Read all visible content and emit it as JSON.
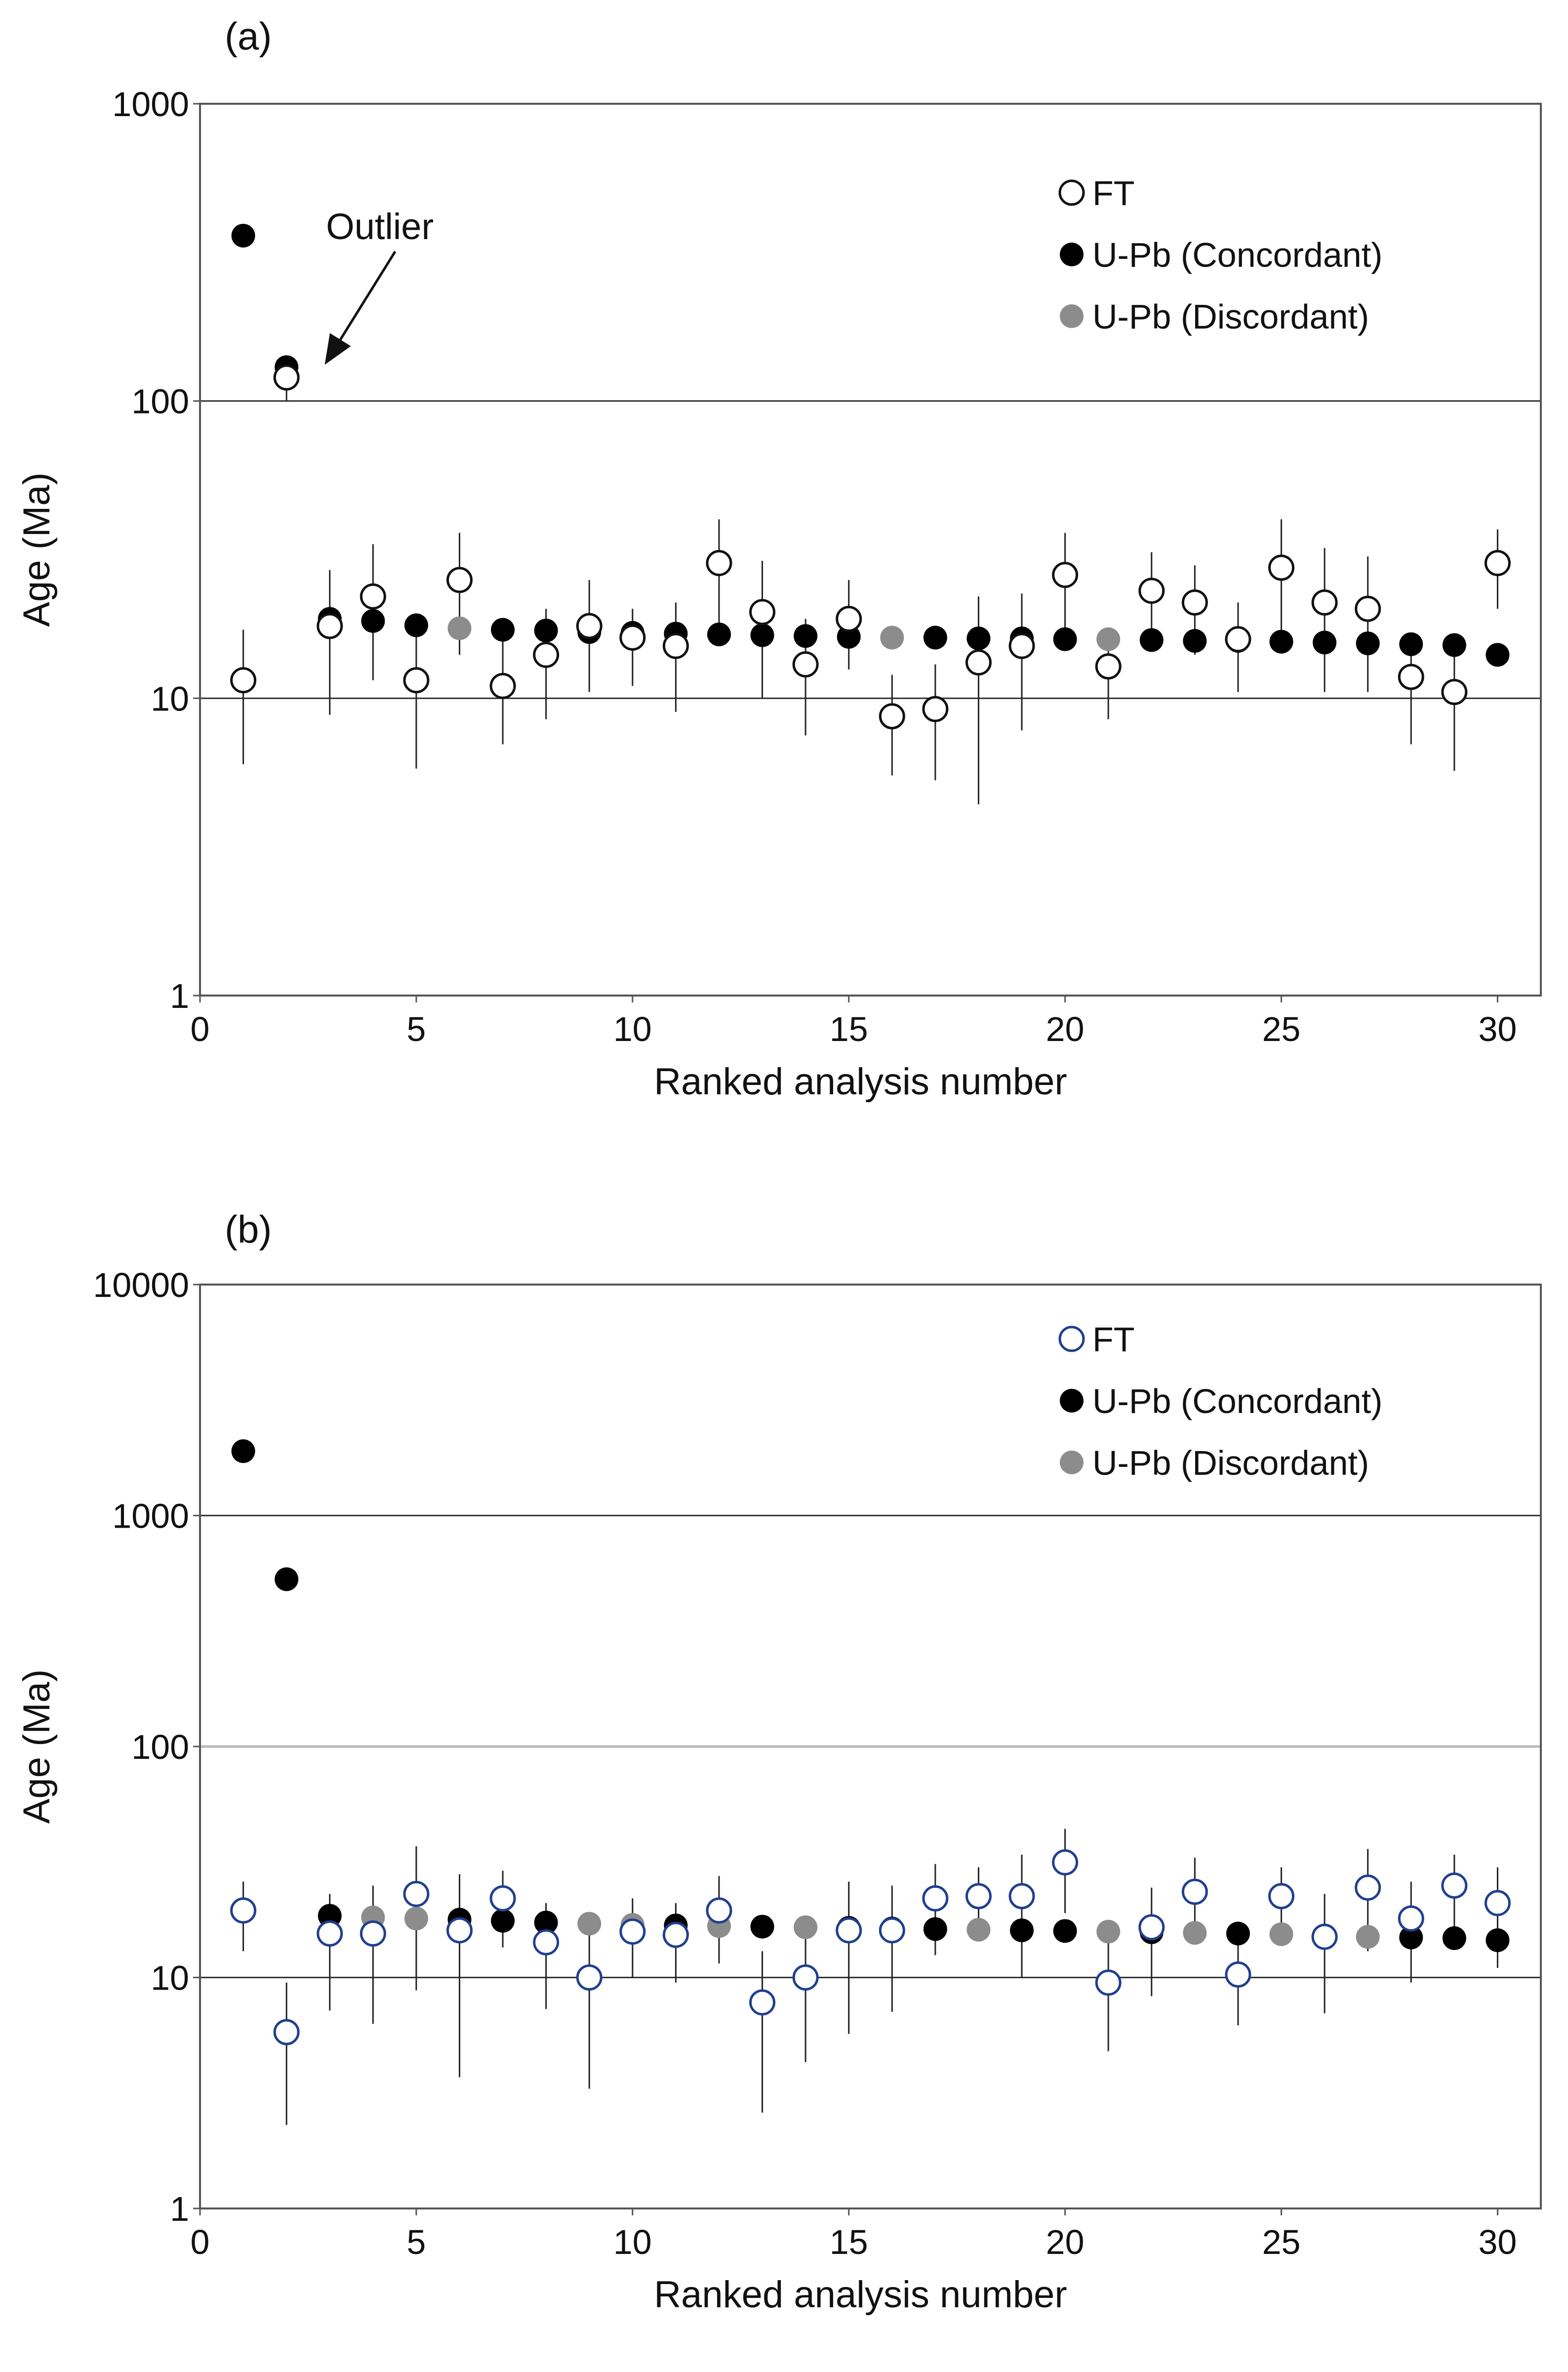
{
  "colors": {
    "ft_fill": "#ffffff",
    "ft_stroke_a": "#111111",
    "ft_stroke_b": "#1f3f8f",
    "concordant": "#000000",
    "discordant": "#8c8c8c",
    "grid": "#333333",
    "grid_b_100": "#b8b8b8",
    "errorbar": "#222222"
  },
  "chart_data": [
    {
      "id": "a",
      "panel_label": "(a)",
      "type": "scatter",
      "y_scale": "log",
      "xlabel": "Ranked analysis number",
      "ylabel": "Age (Ma)",
      "xlim": [
        0,
        31
      ],
      "ylim": [
        1,
        1000
      ],
      "x_ticks": [
        0,
        5,
        10,
        15,
        20,
        25,
        30
      ],
      "x_tick_labels": [
        "0",
        "5",
        "10",
        "15",
        "20",
        "25",
        "30"
      ],
      "y_ticks": [
        1,
        10,
        100,
        1000
      ],
      "y_tick_labels": [
        "1",
        "10",
        "100",
        "1000"
      ],
      "gridlines_y": [
        10,
        100
      ],
      "legend": {
        "position": "top-right",
        "entries": [
          {
            "key": "ft",
            "label": "FT"
          },
          {
            "key": "concordant",
            "label": "U-Pb (Concordant)"
          },
          {
            "key": "discordant",
            "label": "U-Pb (Discordant)"
          }
        ]
      },
      "annotation": {
        "text": "Outlier",
        "points_to": {
          "x": 2,
          "y": 120
        }
      },
      "series": [
        {
          "key": "upb",
          "name": "U-Pb",
          "points": [
            {
              "x": 1,
              "y": 360,
              "status": "concordant"
            },
            {
              "x": 2,
              "y": 130,
              "status": "concordant"
            },
            {
              "x": 3,
              "y": 18.5,
              "status": "concordant"
            },
            {
              "x": 4,
              "y": 18.2,
              "status": "concordant"
            },
            {
              "x": 5,
              "y": 17.6,
              "status": "concordant"
            },
            {
              "x": 6,
              "y": 17.2,
              "status": "discordant"
            },
            {
              "x": 7,
              "y": 17.0,
              "status": "concordant"
            },
            {
              "x": 8,
              "y": 16.9,
              "status": "concordant"
            },
            {
              "x": 9,
              "y": 16.7,
              "status": "concordant"
            },
            {
              "x": 10,
              "y": 16.6,
              "status": "concordant"
            },
            {
              "x": 11,
              "y": 16.5,
              "status": "concordant"
            },
            {
              "x": 12,
              "y": 16.4,
              "status": "concordant"
            },
            {
              "x": 13,
              "y": 16.3,
              "status": "concordant"
            },
            {
              "x": 14,
              "y": 16.2,
              "status": "concordant"
            },
            {
              "x": 15,
              "y": 16.1,
              "status": "concordant"
            },
            {
              "x": 16,
              "y": 16.0,
              "status": "discordant"
            },
            {
              "x": 17,
              "y": 16.0,
              "status": "concordant"
            },
            {
              "x": 18,
              "y": 15.9,
              "status": "concordant"
            },
            {
              "x": 19,
              "y": 15.9,
              "status": "concordant"
            },
            {
              "x": 20,
              "y": 15.8,
              "status": "concordant"
            },
            {
              "x": 21,
              "y": 15.8,
              "status": "discordant"
            },
            {
              "x": 22,
              "y": 15.7,
              "status": "concordant"
            },
            {
              "x": 23,
              "y": 15.6,
              "status": "concordant"
            },
            {
              "x": 24,
              "y": 15.6,
              "status": "concordant"
            },
            {
              "x": 25,
              "y": 15.5,
              "status": "concordant"
            },
            {
              "x": 26,
              "y": 15.4,
              "status": "concordant"
            },
            {
              "x": 27,
              "y": 15.3,
              "status": "concordant"
            },
            {
              "x": 28,
              "y": 15.2,
              "status": "concordant"
            },
            {
              "x": 29,
              "y": 15.1,
              "status": "concordant"
            },
            {
              "x": 30,
              "y": 14.0,
              "status": "concordant"
            }
          ]
        },
        {
          "key": "ft",
          "name": "FT",
          "points": [
            {
              "x": 1,
              "y": 11.5,
              "lo": 6.0,
              "hi": 17.0
            },
            {
              "x": 2,
              "y": 120,
              "lo": 100,
              "hi": 125
            },
            {
              "x": 3,
              "y": 17.5,
              "lo": 8.8,
              "hi": 27.0
            },
            {
              "x": 4,
              "y": 22.0,
              "lo": 11.5,
              "hi": 33.0
            },
            {
              "x": 5,
              "y": 11.5,
              "lo": 5.8,
              "hi": 17.5
            },
            {
              "x": 6,
              "y": 25.0,
              "lo": 14.0,
              "hi": 36.0
            },
            {
              "x": 7,
              "y": 11.0,
              "lo": 7.0,
              "hi": 17.0
            },
            {
              "x": 8,
              "y": 14.0,
              "lo": 8.5,
              "hi": 20.0
            },
            {
              "x": 9,
              "y": 17.5,
              "lo": 10.5,
              "hi": 25.0
            },
            {
              "x": 10,
              "y": 16.0,
              "lo": 11.0,
              "hi": 20.0
            },
            {
              "x": 11,
              "y": 15.0,
              "lo": 9.0,
              "hi": 21.0
            },
            {
              "x": 12,
              "y": 28.5,
              "lo": 17.0,
              "hi": 40.0
            },
            {
              "x": 13,
              "y": 19.5,
              "lo": 10.0,
              "hi": 29.0
            },
            {
              "x": 14,
              "y": 13.0,
              "lo": 7.5,
              "hi": 18.5
            },
            {
              "x": 15,
              "y": 18.5,
              "lo": 12.5,
              "hi": 25.0
            },
            {
              "x": 16,
              "y": 8.7,
              "lo": 5.5,
              "hi": 12.0
            },
            {
              "x": 17,
              "y": 9.2,
              "lo": 5.3,
              "hi": 13.0
            },
            {
              "x": 18,
              "y": 13.2,
              "lo": 4.4,
              "hi": 22.0
            },
            {
              "x": 19,
              "y": 15.0,
              "lo": 7.8,
              "hi": 22.5
            },
            {
              "x": 20,
              "y": 26.0,
              "lo": 16.0,
              "hi": 36.0
            },
            {
              "x": 21,
              "y": 12.8,
              "lo": 8.5,
              "hi": 17.0
            },
            {
              "x": 22,
              "y": 23.0,
              "lo": 15.0,
              "hi": 31.0
            },
            {
              "x": 23,
              "y": 21.0,
              "lo": 14.0,
              "hi": 28.0
            },
            {
              "x": 24,
              "y": 15.8,
              "lo": 10.5,
              "hi": 21.0
            },
            {
              "x": 25,
              "y": 27.5,
              "lo": 15.5,
              "hi": 40.0
            },
            {
              "x": 26,
              "y": 21.0,
              "lo": 10.5,
              "hi": 32.0
            },
            {
              "x": 27,
              "y": 20.0,
              "lo": 10.5,
              "hi": 30.0
            },
            {
              "x": 28,
              "y": 11.8,
              "lo": 7.0,
              "hi": 16.5
            },
            {
              "x": 29,
              "y": 10.5,
              "lo": 5.7,
              "hi": 15.5
            },
            {
              "x": 30,
              "y": 28.5,
              "lo": 20.0,
              "hi": 37.0
            }
          ]
        }
      ]
    },
    {
      "id": "b",
      "panel_label": "(b)",
      "type": "scatter",
      "y_scale": "log",
      "xlabel": "Ranked analysis number",
      "ylabel": "Age (Ma)",
      "xlim": [
        0,
        31
      ],
      "ylim": [
        1,
        10000
      ],
      "x_ticks": [
        0,
        5,
        10,
        15,
        20,
        25,
        30
      ],
      "x_tick_labels": [
        "0",
        "5",
        "10",
        "15",
        "20",
        "25",
        "30"
      ],
      "y_ticks": [
        1,
        10,
        100,
        1000,
        10000
      ],
      "y_tick_labels": [
        "1",
        "10",
        "100",
        "1000",
        "10000"
      ],
      "gridlines_y": [
        10,
        100,
        1000
      ],
      "legend": {
        "position": "top-right",
        "entries": [
          {
            "key": "ft",
            "label": "FT"
          },
          {
            "key": "concordant",
            "label": "U-Pb (Concordant)"
          },
          {
            "key": "discordant",
            "label": "U-Pb (Discordant)"
          }
        ]
      },
      "series": [
        {
          "key": "upb",
          "name": "U-Pb",
          "points": [
            {
              "x": 1,
              "y": 1900,
              "status": "concordant"
            },
            {
              "x": 2,
              "y": 530,
              "status": "concordant"
            },
            {
              "x": 3,
              "y": 18.5,
              "status": "concordant"
            },
            {
              "x": 4,
              "y": 18.2,
              "status": "discordant"
            },
            {
              "x": 5,
              "y": 18.0,
              "status": "discordant"
            },
            {
              "x": 6,
              "y": 17.8,
              "status": "concordant"
            },
            {
              "x": 7,
              "y": 17.6,
              "status": "concordant"
            },
            {
              "x": 8,
              "y": 17.3,
              "status": "concordant"
            },
            {
              "x": 9,
              "y": 17.1,
              "status": "discordant"
            },
            {
              "x": 10,
              "y": 16.9,
              "status": "discordant"
            },
            {
              "x": 11,
              "y": 16.8,
              "status": "concordant"
            },
            {
              "x": 12,
              "y": 16.7,
              "status": "discordant"
            },
            {
              "x": 13,
              "y": 16.6,
              "status": "concordant"
            },
            {
              "x": 14,
              "y": 16.5,
              "status": "discordant"
            },
            {
              "x": 15,
              "y": 16.4,
              "status": "concordant"
            },
            {
              "x": 16,
              "y": 16.3,
              "status": "concordant"
            },
            {
              "x": 17,
              "y": 16.2,
              "status": "concordant"
            },
            {
              "x": 18,
              "y": 16.1,
              "status": "discordant"
            },
            {
              "x": 19,
              "y": 16.0,
              "status": "concordant"
            },
            {
              "x": 20,
              "y": 15.9,
              "status": "concordant"
            },
            {
              "x": 21,
              "y": 15.8,
              "status": "discordant"
            },
            {
              "x": 22,
              "y": 15.7,
              "status": "concordant"
            },
            {
              "x": 23,
              "y": 15.6,
              "status": "discordant"
            },
            {
              "x": 24,
              "y": 15.5,
              "status": "concordant"
            },
            {
              "x": 25,
              "y": 15.4,
              "status": "discordant"
            },
            {
              "x": 26,
              "y": 15.2,
              "status": "concordant"
            },
            {
              "x": 27,
              "y": 15.0,
              "status": "discordant"
            },
            {
              "x": 28,
              "y": 14.9,
              "status": "concordant"
            },
            {
              "x": 29,
              "y": 14.8,
              "status": "concordant"
            },
            {
              "x": 30,
              "y": 14.5,
              "status": "concordant"
            }
          ]
        },
        {
          "key": "ft",
          "name": "FT",
          "points": [
            {
              "x": 1,
              "y": 19.5,
              "lo": 13.0,
              "hi": 26.0
            },
            {
              "x": 2,
              "y": 5.8,
              "lo": 2.3,
              "hi": 9.5
            },
            {
              "x": 3,
              "y": 15.5,
              "lo": 7.2,
              "hi": 23.0
            },
            {
              "x": 4,
              "y": 15.5,
              "lo": 6.3,
              "hi": 25.0
            },
            {
              "x": 5,
              "y": 23.0,
              "lo": 8.8,
              "hi": 37.0
            },
            {
              "x": 6,
              "y": 16.0,
              "lo": 3.7,
              "hi": 28.0
            },
            {
              "x": 7,
              "y": 22.0,
              "lo": 13.5,
              "hi": 29.0
            },
            {
              "x": 8,
              "y": 14.2,
              "lo": 7.3,
              "hi": 21.0
            },
            {
              "x": 9,
              "y": 10.0,
              "lo": 3.3,
              "hi": 17.0
            },
            {
              "x": 10,
              "y": 15.8,
              "lo": 10.0,
              "hi": 22.0
            },
            {
              "x": 11,
              "y": 15.3,
              "lo": 9.5,
              "hi": 21.0
            },
            {
              "x": 12,
              "y": 19.5,
              "lo": 11.5,
              "hi": 27.5
            },
            {
              "x": 13,
              "y": 7.8,
              "lo": 2.6,
              "hi": 13.0
            },
            {
              "x": 14,
              "y": 10.0,
              "lo": 4.3,
              "hi": 16.0
            },
            {
              "x": 15,
              "y": 16.0,
              "lo": 5.7,
              "hi": 26.0
            },
            {
              "x": 16,
              "y": 16.0,
              "lo": 7.1,
              "hi": 25.0
            },
            {
              "x": 17,
              "y": 22.0,
              "lo": 12.5,
              "hi": 31.0
            },
            {
              "x": 18,
              "y": 22.5,
              "lo": 14.5,
              "hi": 30.0
            },
            {
              "x": 19,
              "y": 22.5,
              "lo": 10.0,
              "hi": 34.0
            },
            {
              "x": 20,
              "y": 31.5,
              "lo": 19.0,
              "hi": 44.0
            },
            {
              "x": 21,
              "y": 9.5,
              "lo": 4.8,
              "hi": 14.5
            },
            {
              "x": 22,
              "y": 16.5,
              "lo": 8.3,
              "hi": 24.5
            },
            {
              "x": 23,
              "y": 23.5,
              "lo": 14.5,
              "hi": 33.0
            },
            {
              "x": 24,
              "y": 10.3,
              "lo": 6.2,
              "hi": 14.5
            },
            {
              "x": 25,
              "y": 22.5,
              "lo": 15.0,
              "hi": 30.0
            },
            {
              "x": 26,
              "y": 15.0,
              "lo": 7.0,
              "hi": 23.0
            },
            {
              "x": 27,
              "y": 24.5,
              "lo": 13.0,
              "hi": 36.0
            },
            {
              "x": 28,
              "y": 18.0,
              "lo": 9.5,
              "hi": 26.0
            },
            {
              "x": 29,
              "y": 25.0,
              "lo": 16.0,
              "hi": 34.0
            },
            {
              "x": 30,
              "y": 21.0,
              "lo": 11.0,
              "hi": 30.0
            }
          ]
        }
      ]
    }
  ]
}
